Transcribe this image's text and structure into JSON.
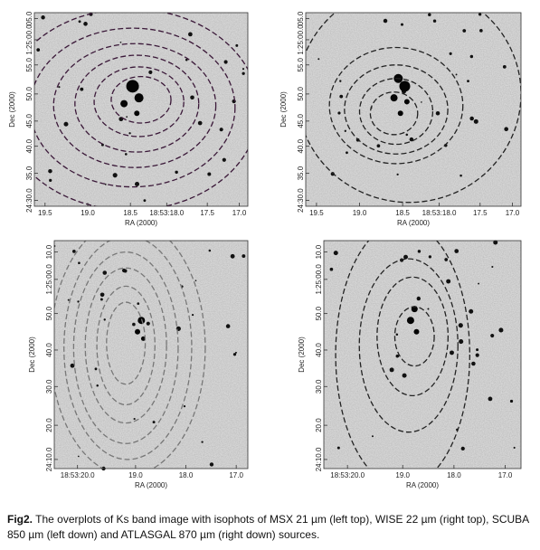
{
  "panels": [
    {
      "id": "msx",
      "xticks": [
        "19.5",
        "19.0",
        "18.5",
        "18:53:18.0",
        "17.5",
        "17.0"
      ],
      "yticks": [
        "24:30.0",
        "35.0",
        "40.0",
        "45.0",
        "50.0",
        "55.0",
        "1:25:00.0",
        "05.0"
      ],
      "xlabel": "RA (2000)",
      "ylabel": "Dec (2000)",
      "contour_color": "#3a1838",
      "contour_style": "dashed"
    },
    {
      "id": "wise",
      "xticks": [
        "19.5",
        "19.0",
        "18.5",
        "18:53:18.0",
        "17.5",
        "17.0"
      ],
      "yticks": [
        "24:30.0",
        "35.0",
        "40.0",
        "45.0",
        "50.0",
        "55.0",
        "1:25:00.0",
        "05.0"
      ],
      "xlabel": "RA (2000)",
      "ylabel": "Dec (2000)",
      "contour_color": "#222222",
      "contour_style": "dashed"
    },
    {
      "id": "scuba",
      "xticks": [
        "18:53:20.0",
        "19.0",
        "18.0",
        "17.0"
      ],
      "yticks": [
        "24:10.0",
        "20.0",
        "30.0",
        "40.0",
        "50.0",
        "1:25:00.0",
        "10.0"
      ],
      "xlabel": "RA (2000)",
      "ylabel": "Dec (2000)",
      "contour_color": "#777777",
      "contour_style": "dashed"
    },
    {
      "id": "atlasgal",
      "xticks": [
        "18:53:20.0",
        "19.0",
        "18.0",
        "17.0"
      ],
      "yticks": [
        "24:10.0",
        "20.0",
        "30.0",
        "40.0",
        "50.0",
        "1:25:00.0",
        "10.0"
      ],
      "xlabel": "RA (2000)",
      "ylabel": "Dec (2000)",
      "contour_color": "#222222",
      "contour_style": "dashed"
    }
  ],
  "caption": {
    "label": "Fig2.",
    "text": " The overplots of Ks band image with isophots of MSX 21 µm (left top), WISE  22  µm (right top), SCUBA 850 µm (left down)  and ATLASGAL 870 µm (right down) sources."
  }
}
